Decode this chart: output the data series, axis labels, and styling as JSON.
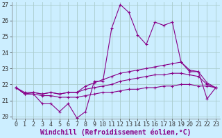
{
  "xlabel": "Windchill (Refroidissement éolien,°C)",
  "x": [
    0,
    1,
    2,
    3,
    4,
    5,
    6,
    7,
    8,
    9,
    10,
    11,
    12,
    13,
    14,
    15,
    16,
    17,
    18,
    19,
    20,
    21,
    22,
    23
  ],
  "line1": [
    21.8,
    21.4,
    21.4,
    20.8,
    20.8,
    20.3,
    20.8,
    19.9,
    20.3,
    22.2,
    22.2,
    25.5,
    27.0,
    26.5,
    25.1,
    24.5,
    25.9,
    25.7,
    25.9,
    23.4,
    22.8,
    22.8,
    21.1,
    21.8
  ],
  "line2": [
    21.8,
    21.4,
    21.5,
    21.4,
    21.5,
    21.4,
    21.5,
    21.5,
    21.9,
    22.1,
    22.3,
    22.5,
    22.7,
    22.8,
    22.9,
    23.0,
    23.1,
    23.2,
    23.3,
    23.4,
    22.9,
    22.8,
    22.1,
    21.8
  ],
  "line3": [
    21.8,
    21.5,
    21.5,
    21.4,
    21.5,
    21.4,
    21.5,
    21.5,
    21.7,
    21.8,
    21.9,
    22.0,
    22.2,
    22.3,
    22.4,
    22.5,
    22.6,
    22.6,
    22.7,
    22.7,
    22.6,
    22.5,
    22.0,
    21.8
  ],
  "line4": [
    21.8,
    21.4,
    21.4,
    21.3,
    21.3,
    21.2,
    21.2,
    21.2,
    21.3,
    21.4,
    21.5,
    21.5,
    21.6,
    21.7,
    21.7,
    21.8,
    21.8,
    21.9,
    21.9,
    22.0,
    22.0,
    21.9,
    21.9,
    21.8
  ],
  "line_color": "#880088",
  "bg_color": "#cceeff",
  "grid_color": "#aacccc",
  "ylim": [
    20,
    27
  ],
  "xlim": [
    0,
    23
  ],
  "yticks": [
    20,
    21,
    22,
    23,
    24,
    25,
    26,
    27
  ],
  "xticks": [
    0,
    1,
    2,
    3,
    4,
    5,
    6,
    7,
    8,
    9,
    10,
    11,
    12,
    13,
    14,
    15,
    16,
    17,
    18,
    19,
    20,
    21,
    22,
    23
  ],
  "markersize": 3,
  "linewidth": 0.8,
  "tick_fontsize": 6,
  "xlabel_fontsize": 7
}
